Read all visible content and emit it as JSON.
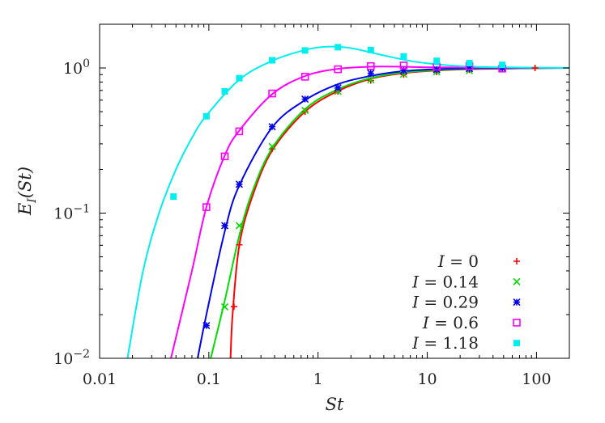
{
  "chart_data": {
    "type": "scatter",
    "title": "",
    "xlabel": "St",
    "ylabel": "E_I(St)",
    "xscale": "log",
    "yscale": "log",
    "xlim": [
      0.01,
      200
    ],
    "ylim": [
      0.01,
      2
    ],
    "x_ticks": [
      0.01,
      0.1,
      1,
      10,
      100
    ],
    "x_tick_labels": [
      "0.01",
      "0.1",
      "1",
      "10",
      "100"
    ],
    "y_ticks": [
      0.01,
      0.1,
      1
    ],
    "y_tick_labels": [
      {
        "base": "10",
        "exp": "−2"
      },
      {
        "base": "10",
        "exp": "−1"
      },
      {
        "base": "10",
        "exp": "0"
      }
    ],
    "grid": false,
    "legend_position": "bottom-right",
    "series": [
      {
        "name": "I = 0",
        "color": "#ff0000",
        "marker": "plus",
        "points": [
          [
            0.17,
            0.0227
          ],
          [
            0.19,
            0.0605
          ],
          [
            0.38,
            0.277
          ],
          [
            0.76,
            0.5
          ],
          [
            1.52,
            0.69
          ],
          [
            3.04,
            0.82
          ],
          [
            6.08,
            0.9
          ],
          [
            12.2,
            0.94
          ],
          [
            24.3,
            0.97
          ],
          [
            97,
            1.0
          ]
        ],
        "curve": [
          [
            0.158,
            0.01
          ],
          [
            0.165,
            0.02
          ],
          [
            0.19,
            0.06
          ],
          [
            0.25,
            0.13
          ],
          [
            0.38,
            0.27
          ],
          [
            0.76,
            0.5
          ],
          [
            1.5,
            0.69
          ],
          [
            3,
            0.84
          ],
          [
            6,
            0.92
          ],
          [
            12,
            0.96
          ],
          [
            30,
            0.985
          ],
          [
            200,
            1.0
          ]
        ]
      },
      {
        "name": "I = 0.14",
        "color": "#00dd00",
        "marker": "cross",
        "points": [
          [
            0.14,
            0.0226
          ],
          [
            0.19,
            0.082
          ],
          [
            0.38,
            0.288
          ],
          [
            0.76,
            0.51
          ],
          [
            1.52,
            0.69
          ],
          [
            3.04,
            0.83
          ],
          [
            6.08,
            0.905
          ],
          [
            12.2,
            0.94
          ],
          [
            24.3,
            0.96
          ],
          [
            48.6,
            1.0
          ]
        ],
        "curve": [
          [
            0.104,
            0.01
          ],
          [
            0.14,
            0.025
          ],
          [
            0.19,
            0.07
          ],
          [
            0.25,
            0.14
          ],
          [
            0.38,
            0.28
          ],
          [
            0.76,
            0.52
          ],
          [
            1.5,
            0.71
          ],
          [
            3,
            0.85
          ],
          [
            6,
            0.93
          ],
          [
            12,
            0.965
          ],
          [
            30,
            0.99
          ],
          [
            200,
            1.0
          ]
        ]
      },
      {
        "name": "I = 0.29",
        "color": "#0000ee",
        "marker": "star",
        "points": [
          [
            0.095,
            0.0168
          ],
          [
            0.14,
            0.082
          ],
          [
            0.19,
            0.158
          ],
          [
            0.38,
            0.394
          ],
          [
            0.76,
            0.61
          ],
          [
            1.52,
            0.73
          ],
          [
            3.04,
            0.92
          ],
          [
            6.08,
            0.96
          ],
          [
            12.2,
            0.975
          ],
          [
            24.3,
            0.99
          ],
          [
            48.6,
            1.0
          ]
        ],
        "curve": [
          [
            0.079,
            0.01
          ],
          [
            0.095,
            0.02
          ],
          [
            0.14,
            0.075
          ],
          [
            0.19,
            0.155
          ],
          [
            0.38,
            0.39
          ],
          [
            0.76,
            0.6
          ],
          [
            1.5,
            0.77
          ],
          [
            3,
            0.88
          ],
          [
            6,
            0.95
          ],
          [
            12,
            0.98
          ],
          [
            30,
            0.995
          ],
          [
            200,
            1.0
          ]
        ]
      },
      {
        "name": "I = 0.6",
        "color": "#ff00ff",
        "marker": "open-square",
        "points": [
          [
            0.095,
            0.11
          ],
          [
            0.14,
            0.246
          ],
          [
            0.19,
            0.366
          ],
          [
            0.38,
            0.667
          ],
          [
            0.76,
            0.87
          ],
          [
            1.52,
            0.98
          ],
          [
            3.04,
            1.03
          ],
          [
            6.08,
            1.04
          ],
          [
            12.2,
            1.02
          ],
          [
            24.3,
            1.03
          ],
          [
            48.6,
            0.99
          ]
        ],
        "curve": [
          [
            0.045,
            0.01
          ],
          [
            0.07,
            0.04
          ],
          [
            0.095,
            0.11
          ],
          [
            0.14,
            0.25
          ],
          [
            0.19,
            0.37
          ],
          [
            0.38,
            0.66
          ],
          [
            0.76,
            0.88
          ],
          [
            1.5,
            0.985
          ],
          [
            3,
            1.02
          ],
          [
            6,
            1.02
          ],
          [
            12,
            1.01
          ],
          [
            200,
            1.0
          ]
        ]
      },
      {
        "name": "I = 1.18",
        "color": "#00eeee",
        "marker": "filled-square",
        "points": [
          [
            0.0475,
            0.13
          ],
          [
            0.095,
            0.465
          ],
          [
            0.14,
            0.69
          ],
          [
            0.19,
            0.85
          ],
          [
            0.38,
            1.13
          ],
          [
            0.76,
            1.32
          ],
          [
            1.52,
            1.39
          ],
          [
            3.04,
            1.33
          ],
          [
            6.08,
            1.2
          ],
          [
            12.2,
            1.12
          ],
          [
            24.3,
            1.08
          ],
          [
            48.6,
            1.05
          ]
        ],
        "curve": [
          [
            0.018,
            0.01
          ],
          [
            0.025,
            0.04
          ],
          [
            0.035,
            0.1
          ],
          [
            0.05,
            0.2
          ],
          [
            0.07,
            0.33
          ],
          [
            0.095,
            0.47
          ],
          [
            0.19,
            0.83
          ],
          [
            0.38,
            1.12
          ],
          [
            0.76,
            1.33
          ],
          [
            1.2,
            1.4
          ],
          [
            2,
            1.37
          ],
          [
            4,
            1.22
          ],
          [
            8,
            1.1
          ],
          [
            20,
            1.03
          ],
          [
            50,
            1.01
          ],
          [
            200,
            1.0
          ]
        ]
      }
    ],
    "legend": [
      {
        "label": "I = 0"
      },
      {
        "label": "I = 0.14"
      },
      {
        "label": "I = 0.29"
      },
      {
        "label": "I = 0.6"
      },
      {
        "label": "I = 1.18"
      }
    ]
  }
}
